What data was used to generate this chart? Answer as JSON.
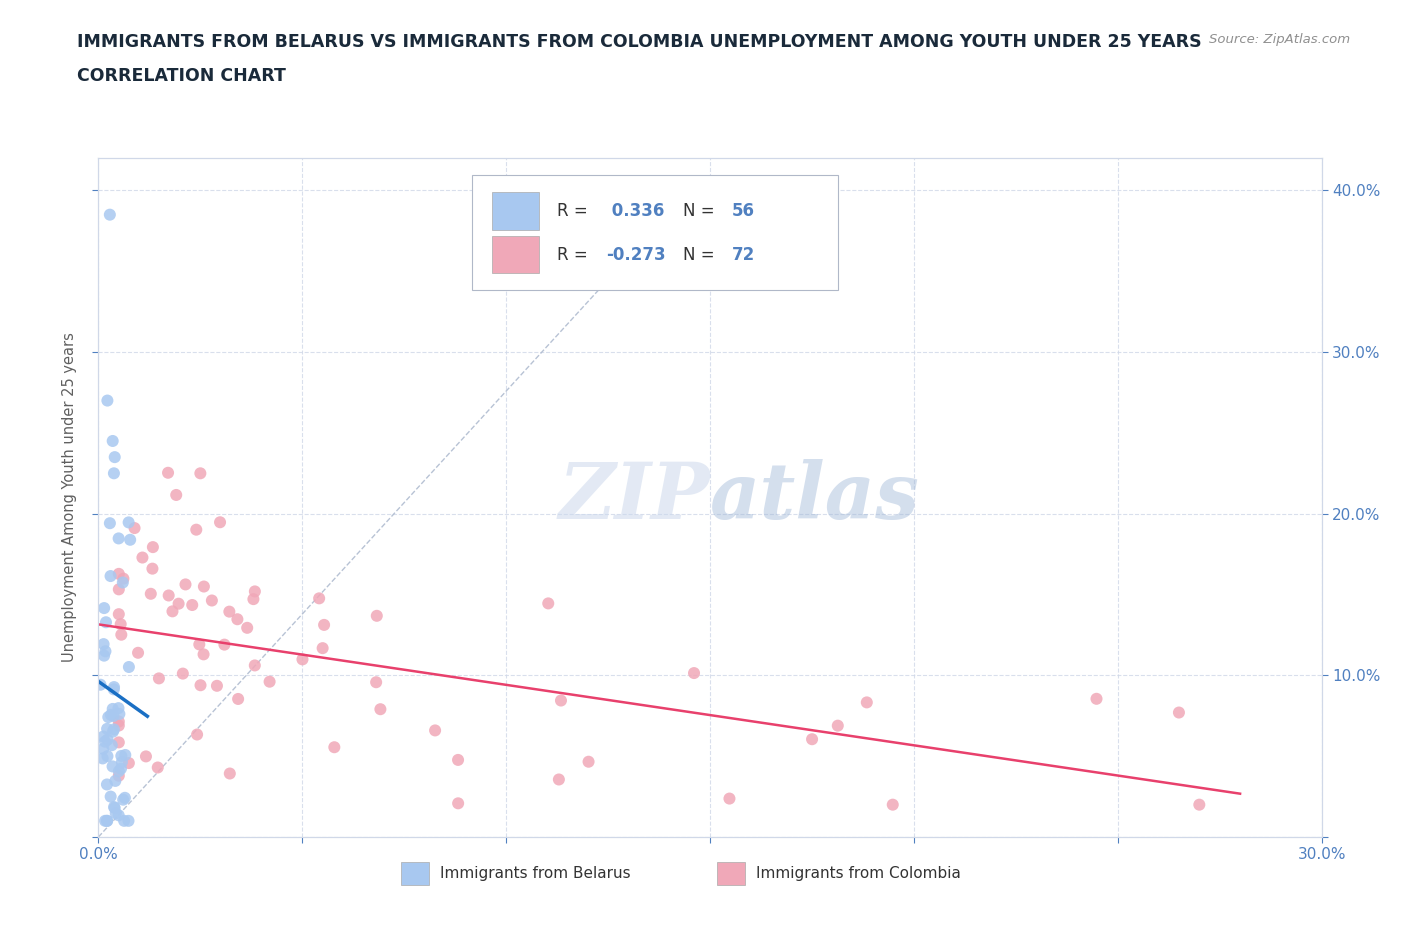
{
  "title_line1": "IMMIGRANTS FROM BELARUS VS IMMIGRANTS FROM COLOMBIA UNEMPLOYMENT AMONG YOUTH UNDER 25 YEARS",
  "title_line2": "CORRELATION CHART",
  "source": "Source: ZipAtlas.com",
  "ylabel": "Unemployment Among Youth under 25 years",
  "xlim": [
    0.0,
    0.3
  ],
  "ylim": [
    0.0,
    0.42
  ],
  "legend_belarus": "Immigrants from Belarus",
  "legend_colombia": "Immigrants from Colombia",
  "R_belarus": 0.336,
  "N_belarus": 56,
  "R_colombia": -0.273,
  "N_colombia": 72,
  "color_belarus": "#a8c8f0",
  "color_colombia": "#f0a8b8",
  "line_color_belarus": "#1a6fc4",
  "line_color_colombia": "#e8406c",
  "diagonal_color": "#b0bcd0",
  "background_color": "#ffffff",
  "watermark_zip": "ZIP",
  "watermark_atlas": "atlas",
  "grid_color": "#d0d8e8",
  "tick_color": "#5080c0",
  "axis_color": "#d0d8e8",
  "title_color": "#1a2a3a",
  "source_color": "#909090",
  "ylabel_color": "#606060"
}
